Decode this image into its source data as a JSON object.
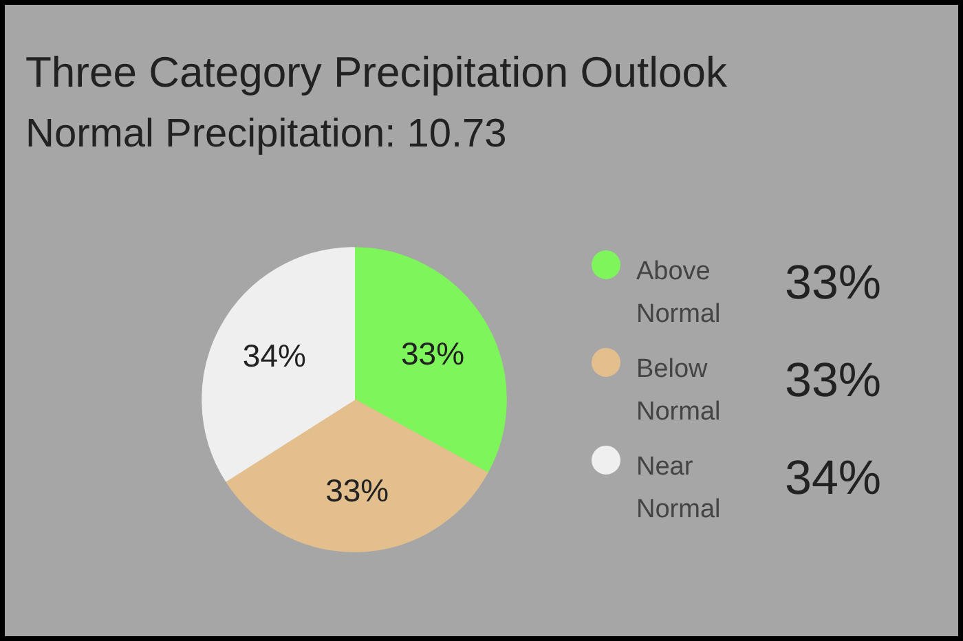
{
  "chart_data": {
    "type": "pie",
    "title": "Three Category Precipitation Outlook",
    "subtitle": "Normal Precipitation: 10.73",
    "categories": [
      "Above Normal",
      "Below Normal",
      "Near Normal"
    ],
    "values": [
      33,
      33,
      34
    ],
    "colors": [
      "#7ef55a",
      "#e3bf8d",
      "#efefef"
    ],
    "value_labels": [
      "33%",
      "33%",
      "34%"
    ],
    "legend": "right"
  }
}
